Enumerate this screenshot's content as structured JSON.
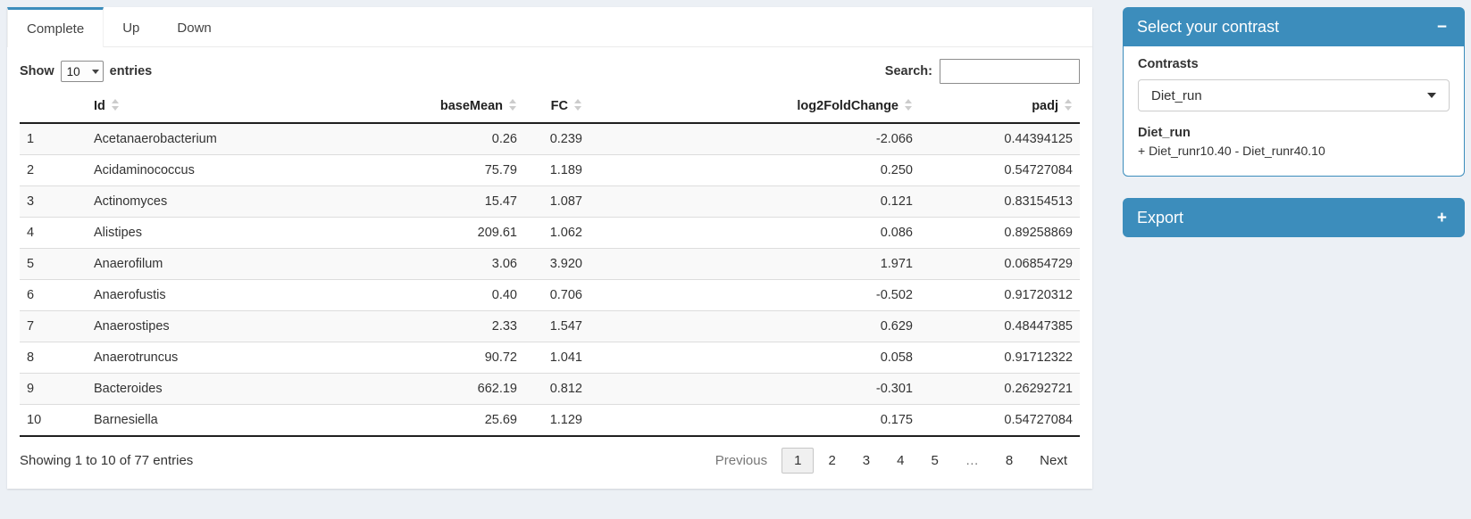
{
  "colors": {
    "primary": "#3c8dbc",
    "page_bg": "#ecf0f5",
    "stripe": "#f9f9f9"
  },
  "tabs": [
    {
      "label": "Complete",
      "active": true
    },
    {
      "label": "Up",
      "active": false
    },
    {
      "label": "Down",
      "active": false
    }
  ],
  "length_control": {
    "prefix": "Show",
    "selected": "10",
    "suffix": "entries"
  },
  "search": {
    "label": "Search:",
    "value": ""
  },
  "table": {
    "columns": [
      {
        "label": "",
        "sortable": false,
        "align": "left"
      },
      {
        "label": "Id",
        "sortable": true,
        "align": "left"
      },
      {
        "label": "baseMean",
        "sortable": true,
        "align": "right"
      },
      {
        "label": "FC",
        "sortable": true,
        "align": "right"
      },
      {
        "label": "log2FoldChange",
        "sortable": true,
        "align": "right"
      },
      {
        "label": "padj",
        "sortable": true,
        "align": "right"
      }
    ],
    "rows": [
      {
        "num": "1",
        "id": "Acetanaerobacterium",
        "base_mean": "0.26",
        "fc": "0.239",
        "log2fc": "-2.066",
        "padj": "0.44394125"
      },
      {
        "num": "2",
        "id": "Acidaminococcus",
        "base_mean": "75.79",
        "fc": "1.189",
        "log2fc": "0.250",
        "padj": "0.54727084"
      },
      {
        "num": "3",
        "id": "Actinomyces",
        "base_mean": "15.47",
        "fc": "1.087",
        "log2fc": "0.121",
        "padj": "0.83154513"
      },
      {
        "num": "4",
        "id": "Alistipes",
        "base_mean": "209.61",
        "fc": "1.062",
        "log2fc": "0.086",
        "padj": "0.89258869"
      },
      {
        "num": "5",
        "id": "Anaerofilum",
        "base_mean": "3.06",
        "fc": "3.920",
        "log2fc": "1.971",
        "padj": "0.06854729"
      },
      {
        "num": "6",
        "id": "Anaerofustis",
        "base_mean": "0.40",
        "fc": "0.706",
        "log2fc": "-0.502",
        "padj": "0.91720312"
      },
      {
        "num": "7",
        "id": "Anaerostipes",
        "base_mean": "2.33",
        "fc": "1.547",
        "log2fc": "0.629",
        "padj": "0.48447385"
      },
      {
        "num": "8",
        "id": "Anaerotruncus",
        "base_mean": "90.72",
        "fc": "1.041",
        "log2fc": "0.058",
        "padj": "0.91712322"
      },
      {
        "num": "9",
        "id": "Bacteroides",
        "base_mean": "662.19",
        "fc": "0.812",
        "log2fc": "-0.301",
        "padj": "0.26292721"
      },
      {
        "num": "10",
        "id": "Barnesiella",
        "base_mean": "25.69",
        "fc": "1.129",
        "log2fc": "0.175",
        "padj": "0.54727084"
      }
    ]
  },
  "info_text": "Showing 1 to 10 of 77 entries",
  "pagination": {
    "previous_label": "Previous",
    "pages": [
      {
        "label": "1",
        "active": true,
        "ellipsis": false
      },
      {
        "label": "2",
        "active": false,
        "ellipsis": false
      },
      {
        "label": "3",
        "active": false,
        "ellipsis": false
      },
      {
        "label": "4",
        "active": false,
        "ellipsis": false
      },
      {
        "label": "5",
        "active": false,
        "ellipsis": false
      },
      {
        "label": "…",
        "active": false,
        "ellipsis": true
      },
      {
        "label": "8",
        "active": false,
        "ellipsis": false
      }
    ],
    "next_label": "Next"
  },
  "contrast_panel": {
    "title": "Select your contrast",
    "collapse_icon": "−",
    "section_label": "Contrasts",
    "selected_contrast": "Diet_run",
    "contrast_name": "Diet_run",
    "contrast_formula": "+ Diet_runr10.40 - Diet_runr40.10"
  },
  "export_panel": {
    "title": "Export",
    "expand_icon": "+"
  }
}
